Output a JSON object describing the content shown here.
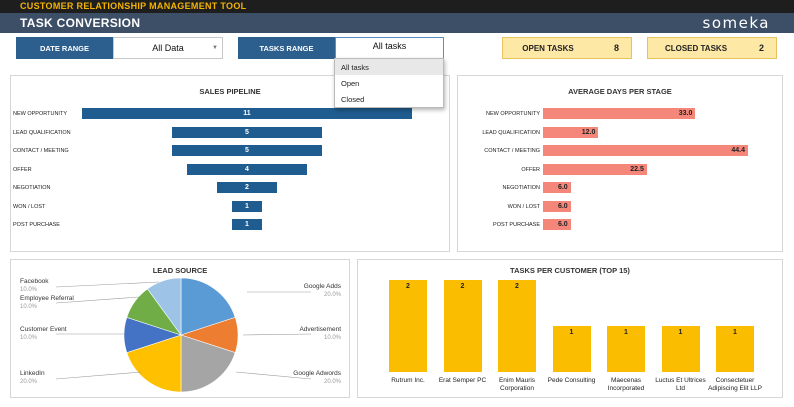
{
  "header": {
    "app_title": "CUSTOMER RELATIONSHIP MANAGEMENT TOOL",
    "page_title": "TASK CONVERSION",
    "brand": "someka"
  },
  "filters": {
    "date_range_label": "DATE RANGE",
    "date_range_value": "All Data",
    "tasks_range_label": "TASKS RANGE",
    "tasks_range_value": "All tasks",
    "tasks_dropdown_options": [
      "All tasks",
      "Open",
      "Closed"
    ],
    "tasks_dropdown_selected": "All tasks"
  },
  "kpis": {
    "open_tasks_label": "OPEN TASKS",
    "open_tasks_value": "8",
    "closed_tasks_label": "CLOSED TASKS",
    "closed_tasks_value": "2"
  },
  "colors": {
    "pipeline_bar": "#1f5c8f",
    "days_bar": "#f4867a",
    "customer_bar": "#fbbd00",
    "pie": [
      "#5b9bd5",
      "#ed7d31",
      "#a5a5a5",
      "#ffc000",
      "#4472c4",
      "#70ad47",
      "#9dc3e6"
    ]
  },
  "chart_data": [
    {
      "type": "bar",
      "orientation": "horizontal-funnel",
      "title": "SALES PIPELINE",
      "categories": [
        "NEW OPPORTUNITY",
        "LEAD QUALIFICATION",
        "CONTACT / MEETING",
        "OFFER",
        "NEGOTIATION",
        "WON / LOST",
        "POST PURCHASE"
      ],
      "values": [
        11,
        5,
        5,
        4,
        2,
        1,
        1
      ]
    },
    {
      "type": "bar",
      "orientation": "horizontal",
      "title": "AVERAGE DAYS PER STAGE",
      "categories": [
        "NEW OPPORTUNITY",
        "LEAD QUALIFICATION",
        "CONTACT / MEETING",
        "OFFER",
        "NEGOTIATION",
        "WON / LOST",
        "POST PURCHASE"
      ],
      "values": [
        33.0,
        12.0,
        44.4,
        22.5,
        6.0,
        6.0,
        6.0
      ],
      "value_labels": [
        "33.0",
        "12.0",
        "44.4",
        "22.5",
        "6.0",
        "6.0",
        "6.0"
      ]
    },
    {
      "type": "pie",
      "title": "LEAD SOURCE",
      "slices": [
        {
          "label": "Google Adds",
          "value": 20.0,
          "pct": "20.0%"
        },
        {
          "label": "Advertisement",
          "value": 10.0,
          "pct": "10.0%"
        },
        {
          "label": "Google Adwords",
          "value": 20.0,
          "pct": "20.0%"
        },
        {
          "label": "LinkedIn",
          "value": 20.0,
          "pct": "20.0%"
        },
        {
          "label": "Customer Event",
          "value": 10.0,
          "pct": "10.0%"
        },
        {
          "label": "Employee Referral",
          "value": 10.0,
          "pct": "10.0%"
        },
        {
          "label": "Facebook",
          "value": 10.0,
          "pct": "10.0%"
        }
      ]
    },
    {
      "type": "bar",
      "title": "TASKS PER CUSTOMER (TOP 15)",
      "categories": [
        "Rutrum Inc.",
        "Erat Semper PC",
        "Enim Mauris Corporation",
        "Pede Consulting",
        "Maecenas Incorporated",
        "Luctus Et Ultrices Ltd",
        "Consectetuer Adipiscing Elit LLP"
      ],
      "values": [
        2,
        2,
        2,
        1,
        1,
        1,
        1
      ]
    }
  ]
}
